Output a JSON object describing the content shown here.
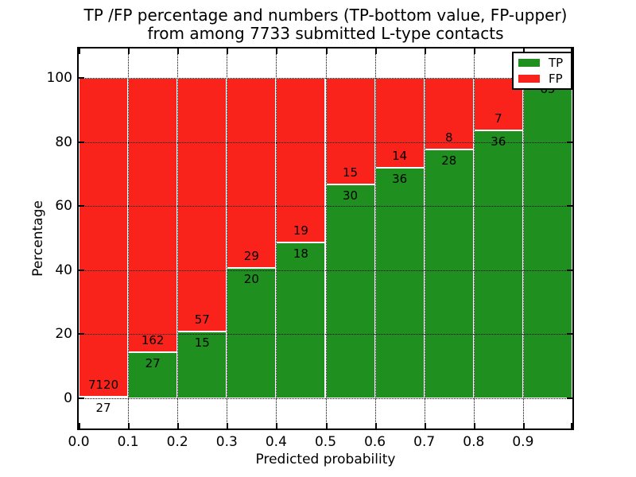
{
  "title": {
    "line1": "TP /FP percentage and numbers (TP-bottom value, FP-upper)",
    "line2": "from among 7733 submitted L-type contacts"
  },
  "axes": {
    "x_label": "Predicted probability",
    "y_label": "Percentage",
    "x_ticks": [
      "0.0",
      "0.1",
      "0.2",
      "0.3",
      "0.4",
      "0.5",
      "0.6",
      "0.7",
      "0.8",
      "0.9"
    ],
    "y_ticks": [
      0,
      20,
      40,
      60,
      80,
      100
    ]
  },
  "legend": {
    "items": [
      {
        "label": "TP",
        "color": "#1f8f1f"
      },
      {
        "label": "FP",
        "color": "#fa231c"
      }
    ]
  },
  "colors": {
    "tp_green": "#1f8f1f",
    "fp_red": "#fa231c",
    "grid": "#000000",
    "background": "#ffffff"
  },
  "chart_data": {
    "type": "bar",
    "stacked": true,
    "orientation": "vertical",
    "title": "TP /FP percentage and numbers (TP-bottom value, FP-upper) from among 7733 submitted L-type contacts",
    "xlabel": "Predicted probability",
    "ylabel": "Percentage",
    "total_contacts": 7733,
    "bin_edges": [
      0.0,
      0.1,
      0.2,
      0.3,
      0.4,
      0.5,
      0.6,
      0.7,
      0.8,
      0.9,
      1.0
    ],
    "categories": [
      "0.0-0.1",
      "0.1-0.2",
      "0.2-0.3",
      "0.3-0.4",
      "0.4-0.5",
      "0.5-0.6",
      "0.6-0.7",
      "0.7-0.8",
      "0.8-0.9",
      "0.9-1.0"
    ],
    "series": [
      {
        "name": "TP",
        "counts": [
          27,
          27,
          15,
          20,
          18,
          30,
          36,
          28,
          36,
          65
        ]
      },
      {
        "name": "FP",
        "counts": [
          7120,
          162,
          57,
          29,
          19,
          15,
          14,
          8,
          7,
          0
        ]
      }
    ],
    "bar_heights_note": "each bar spans 0-100%; green TP height = TP/(TP+FP)*100, red FP fills remainder; counts are printed on bars (TP below boundary, FP above boundary)",
    "ylim": [
      -10,
      110
    ],
    "grid": "dotted, drawn over bars",
    "legend_position": "upper right"
  }
}
